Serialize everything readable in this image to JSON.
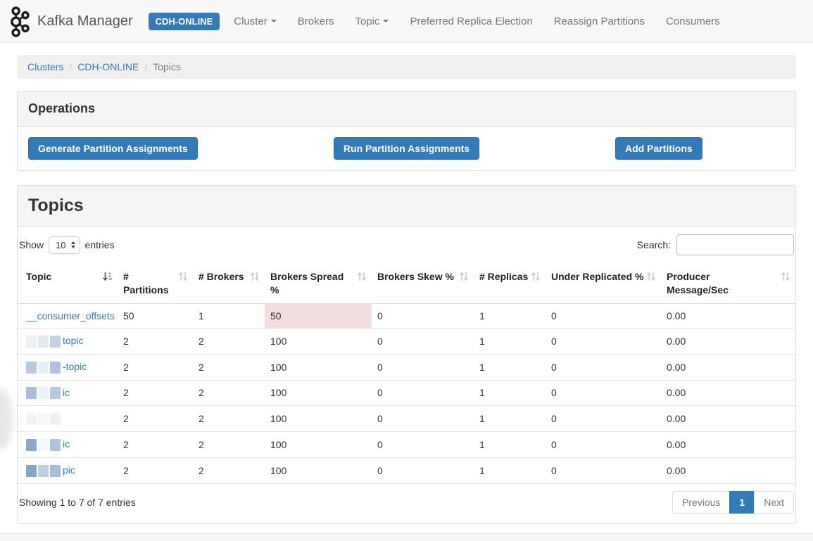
{
  "navbar": {
    "brand": "Kafka Manager",
    "cluster_badge": "CDH-ONLINE",
    "items": [
      {
        "label": "Cluster",
        "dropdown": true
      },
      {
        "label": "Brokers",
        "dropdown": false
      },
      {
        "label": "Topic",
        "dropdown": true
      },
      {
        "label": "Preferred Replica Election",
        "dropdown": false
      },
      {
        "label": "Reassign Partitions",
        "dropdown": false
      },
      {
        "label": "Consumers",
        "dropdown": false
      }
    ]
  },
  "breadcrumb": {
    "separator": "/",
    "items": [
      {
        "label": "Clusters",
        "link": true
      },
      {
        "label": "CDH-ONLINE",
        "link": true
      },
      {
        "label": "Topics",
        "link": false
      }
    ]
  },
  "operations": {
    "title": "Operations",
    "buttons": [
      "Generate Partition Assignments",
      "Run Partition Assignments",
      "Add Partitions"
    ]
  },
  "topics": {
    "title": "Topics",
    "controls": {
      "show_label": "Show",
      "page_size": "10",
      "entries_label": "entries",
      "search_label": "Search:",
      "search_value": ""
    },
    "table": {
      "columns": [
        {
          "label": "Topic",
          "sort": "asc"
        },
        {
          "label": "# Partitions",
          "sort": "none"
        },
        {
          "label": "# Brokers",
          "sort": "none"
        },
        {
          "label": "Brokers Spread %",
          "sort": "none"
        },
        {
          "label": "Brokers Skew %",
          "sort": "none"
        },
        {
          "label": "# Replicas",
          "sort": "none"
        },
        {
          "label": "Under Replicated %",
          "sort": "none"
        },
        {
          "label": "Producer Message/Sec",
          "sort": "none"
        }
      ],
      "rows": [
        {
          "topic": "__consumer_offsets",
          "redacted": false,
          "suffix": "",
          "blocks": [],
          "partitions": "50",
          "brokers": "1",
          "spread": "50",
          "spread_danger": true,
          "skew": "0",
          "replicas": "1",
          "under_replicated": "0",
          "producer_msg_sec": "0.00"
        },
        {
          "topic": "",
          "redacted": true,
          "suffix": "topic",
          "blocks": [
            0.12,
            0.2,
            0.42
          ],
          "partitions": "2",
          "brokers": "2",
          "spread": "100",
          "spread_danger": false,
          "skew": "0",
          "replicas": "1",
          "under_replicated": "0",
          "producer_msg_sec": "0.00"
        },
        {
          "topic": "",
          "redacted": true,
          "suffix": "-topic",
          "blocks": [
            0.5,
            0.15,
            0.55
          ],
          "partitions": "2",
          "brokers": "2",
          "spread": "100",
          "spread_danger": false,
          "skew": "0",
          "replicas": "1",
          "under_replicated": "0",
          "producer_msg_sec": "0.00"
        },
        {
          "topic": "",
          "redacted": true,
          "suffix": "ic",
          "blocks": [
            0.6,
            0.12,
            0.5
          ],
          "partitions": "2",
          "brokers": "2",
          "spread": "100",
          "spread_danger": false,
          "skew": "0",
          "replicas": "1",
          "under_replicated": "0",
          "producer_msg_sec": "0.00"
        },
        {
          "topic": "",
          "redacted": true,
          "suffix": "",
          "blocks": [
            0.1,
            0.08,
            0.12
          ],
          "partitions": "2",
          "brokers": "2",
          "spread": "100",
          "spread_danger": false,
          "skew": "0",
          "replicas": "1",
          "under_replicated": "0",
          "producer_msg_sec": "0.00"
        },
        {
          "topic": "",
          "redacted": true,
          "suffix": "ic",
          "blocks": [
            0.8,
            0.08,
            0.55
          ],
          "partitions": "2",
          "brokers": "2",
          "spread": "100",
          "spread_danger": false,
          "skew": "0",
          "replicas": "1",
          "under_replicated": "0",
          "producer_msg_sec": "0.00"
        },
        {
          "topic": "",
          "redacted": true,
          "suffix": "pic",
          "blocks": [
            0.85,
            0.45,
            0.6
          ],
          "partitions": "2",
          "brokers": "2",
          "spread": "100",
          "spread_danger": false,
          "skew": "0",
          "replicas": "1",
          "under_replicated": "0",
          "producer_msg_sec": "0.00"
        }
      ]
    },
    "footer": {
      "summary": "Showing 1 to 7 of 7 entries",
      "pagination": {
        "previous": "Previous",
        "pages": [
          {
            "label": "1",
            "active": true
          }
        ],
        "next": "Next"
      }
    }
  },
  "colors": {
    "primary": "#337ab7",
    "primary-border": "#2e6da4",
    "danger-bg": "#f2dede",
    "link": "#337ab7",
    "navbar-bg": "#f8f8f8",
    "panel-heading-bg": "#f5f5f5",
    "breadcrumb-bg": "#f0f0f0",
    "border": "#dddddd",
    "text": "#333333",
    "muted": "#777777",
    "redact-block": "#6d94c0"
  }
}
